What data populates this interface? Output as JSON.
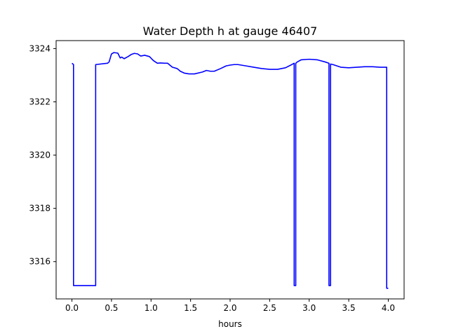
{
  "chart_data": {
    "type": "line",
    "title": "Water Depth h at gauge 46407",
    "xlabel": "hours",
    "ylabel": "",
    "xlim": [
      -0.2,
      4.2
    ],
    "ylim": [
      3314.6,
      3324.3
    ],
    "xticks": [
      0.0,
      0.5,
      1.0,
      1.5,
      2.0,
      2.5,
      3.0,
      3.5,
      4.0
    ],
    "xtick_labels": [
      "0.0",
      "0.5",
      "1.0",
      "1.5",
      "2.0",
      "2.5",
      "3.0",
      "3.5",
      "4.0"
    ],
    "yticks": [
      3316,
      3318,
      3320,
      3322,
      3324
    ],
    "ytick_labels": [
      "3316",
      "3318",
      "3320",
      "3322",
      "3324"
    ],
    "grid": false,
    "series": [
      {
        "color": "#0000ff",
        "x": [
          0.0,
          0.02,
          0.02,
          0.03,
          0.29,
          0.3,
          0.3,
          0.45,
          0.47,
          0.5,
          0.53,
          0.58,
          0.61,
          0.63,
          0.66,
          0.71,
          0.75,
          0.79,
          0.83,
          0.87,
          0.92,
          0.98,
          1.03,
          1.08,
          1.12,
          1.17,
          1.21,
          1.27,
          1.33,
          1.37,
          1.42,
          1.48,
          1.55,
          1.65,
          1.7,
          1.75,
          1.8,
          1.88,
          1.95,
          2.0,
          2.05,
          2.1,
          2.2,
          2.3,
          2.4,
          2.5,
          2.6,
          2.7,
          2.78,
          2.81,
          2.81,
          2.83,
          2.83,
          2.85,
          2.9,
          3.0,
          3.1,
          3.2,
          3.25,
          3.25,
          3.27,
          3.27,
          3.3,
          3.4,
          3.5,
          3.6,
          3.7,
          3.8,
          3.9,
          3.98,
          3.98,
          4.0
        ],
        "y": [
          3323.45,
          3323.4,
          3315.1,
          3315.1,
          3315.1,
          3315.1,
          3323.4,
          3323.45,
          3323.5,
          3323.8,
          3323.85,
          3323.83,
          3323.65,
          3323.68,
          3323.62,
          3323.7,
          3323.78,
          3323.82,
          3323.8,
          3323.72,
          3323.75,
          3323.7,
          3323.55,
          3323.45,
          3323.46,
          3323.45,
          3323.45,
          3323.3,
          3323.25,
          3323.15,
          3323.08,
          3323.05,
          3323.05,
          3323.12,
          3323.18,
          3323.15,
          3323.15,
          3323.25,
          3323.35,
          3323.38,
          3323.4,
          3323.4,
          3323.35,
          3323.3,
          3323.25,
          3323.22,
          3323.22,
          3323.28,
          3323.4,
          3323.45,
          3315.1,
          3315.1,
          3323.45,
          3323.5,
          3323.58,
          3323.6,
          3323.58,
          3323.5,
          3323.45,
          3315.1,
          3315.1,
          3323.42,
          3323.4,
          3323.3,
          3323.28,
          3323.3,
          3323.32,
          3323.32,
          3323.3,
          3323.3,
          3315.0,
          3315.0
        ]
      }
    ]
  }
}
